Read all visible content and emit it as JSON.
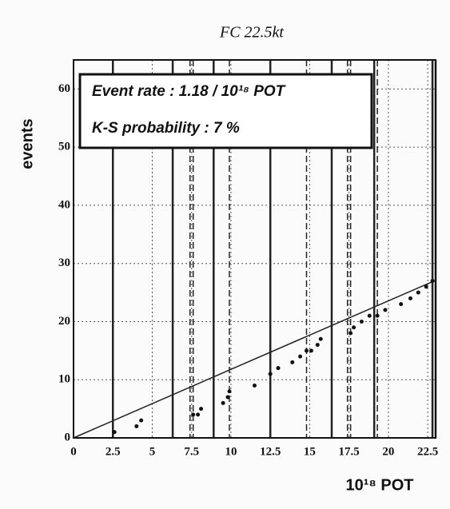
{
  "chart_data": {
    "type": "scatter",
    "title": "FC 22.5kt",
    "y_label": "events",
    "x_label": "10¹⁸ POT",
    "annotations": [
      "Event rate : 1.18 / 10¹⁸ POT",
      "K-S probability :    7 %"
    ],
    "x": [
      2.6,
      4.0,
      4.3,
      7.6,
      7.9,
      8.1,
      9.5,
      9.8,
      9.9,
      11.5,
      12.5,
      13.0,
      13.9,
      14.4,
      14.8,
      15.1,
      15.5,
      15.7,
      17.6,
      17.8,
      18.3,
      18.8,
      19.3,
      19.8,
      20.8,
      21.4,
      21.9,
      22.4,
      22.8
    ],
    "values": [
      1,
      2,
      3,
      4,
      4,
      5,
      6,
      7,
      8,
      9,
      11,
      12,
      13,
      14,
      15,
      15,
      16,
      17,
      18,
      19,
      20,
      21,
      21,
      22,
      23,
      24,
      25,
      26,
      27
    ],
    "color": "#111111",
    "fit_line": {
      "x": [
        0,
        23
      ],
      "y": [
        0,
        27.1
      ]
    },
    "solid_lines": [
      2.5,
      6.3,
      8.9,
      12.5,
      16.4,
      19.1,
      22.8,
      23
    ],
    "dashed_lines": [
      7.4,
      7.6,
      9.9,
      14.8,
      17.4,
      17.6,
      19.3
    ],
    "xlim": [
      0,
      23
    ],
    "ylim": [
      0,
      65
    ],
    "xticks": [
      0,
      2.5,
      5,
      7.5,
      10,
      12.5,
      15,
      17.5,
      20,
      22.5
    ],
    "yticks": [
      0,
      10,
      20,
      30,
      40,
      50,
      60
    ],
    "grid": true
  }
}
